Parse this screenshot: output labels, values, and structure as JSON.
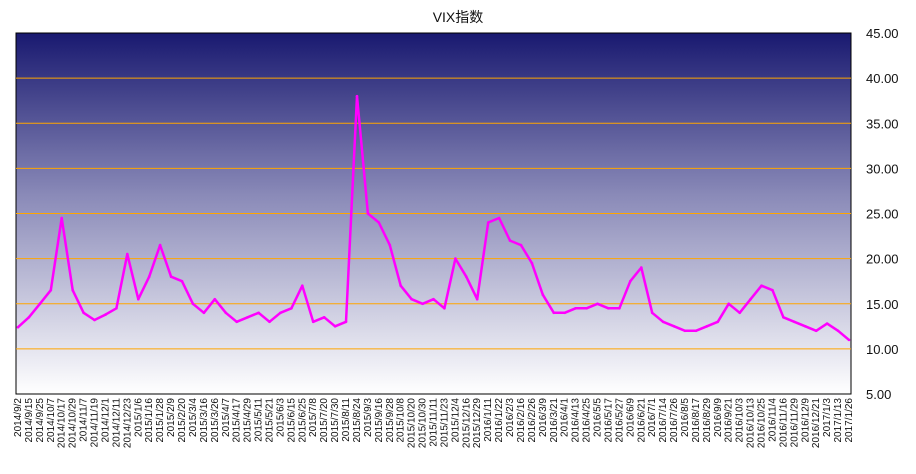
{
  "chart_data": {
    "type": "line",
    "title": "VIX指数",
    "xlabel": "",
    "ylabel": "",
    "ylim": [
      5,
      45
    ],
    "y_ticks": [
      "5.00",
      "10.00",
      "15.00",
      "20.00",
      "25.00",
      "30.00",
      "35.00",
      "40.00",
      "45.00"
    ],
    "y_axis_position": "right",
    "grid": true,
    "legend": "none",
    "colors": {
      "line": "#ff00ff",
      "grid": "#ffa500",
      "background_top": "#191970",
      "background_bottom": "#ffffff"
    },
    "x": [
      "2014/9/2",
      "2014/9/15",
      "2014/9/25",
      "2014/10/7",
      "2014/10/17",
      "2014/10/29",
      "2014/11/7",
      "2014/11/19",
      "2014/12/1",
      "2014/12/11",
      "2014/12/23",
      "2015/1/6",
      "2015/1/16",
      "2015/1/28",
      "2015/2/9",
      "2015/2/20",
      "2015/3/4",
      "2015/3/16",
      "2015/3/26",
      "2015/4/7",
      "2015/4/17",
      "2015/4/29",
      "2015/5/11",
      "2015/5/21",
      "2015/6/3",
      "2015/6/15",
      "2015/6/25",
      "2015/7/8",
      "2015/7/20",
      "2015/7/30",
      "2015/8/11",
      "2015/8/24",
      "2015/9/3",
      "2015/9/16",
      "2015/9/28",
      "2015/10/8",
      "2015/10/20",
      "2015/10/30",
      "2015/11/11",
      "2015/11/23",
      "2015/12/4",
      "2015/12/16",
      "2015/12/29",
      "2016/1/11",
      "2016/1/22",
      "2016/2/3",
      "2016/2/16",
      "2016/2/26",
      "2016/3/9",
      "2016/3/21",
      "2016/4/1",
      "2016/4/13",
      "2016/4/25",
      "2016/5/5",
      "2016/5/17",
      "2016/5/27",
      "2016/6/9",
      "2016/6/21",
      "2016/7/1",
      "2016/7/14",
      "2016/7/26",
      "2016/8/5",
      "2016/8/17",
      "2016/8/29",
      "2016/9/9",
      "2016/9/21",
      "2016/10/3",
      "2016/10/13",
      "2016/10/25",
      "2016/11/4",
      "2016/11/16",
      "2016/11/29",
      "2016/12/9",
      "2016/12/21",
      "2017/1/3",
      "2017/1/13",
      "2017/1/26"
    ],
    "series": [
      {
        "values": [
          12.4,
          13.5,
          15.0,
          16.5,
          24.5,
          16.5,
          14.0,
          13.2,
          13.8,
          14.5,
          20.5,
          15.5,
          18.0,
          21.5,
          18.0,
          17.5,
          15.0,
          14.0,
          15.5,
          14.0,
          13.0,
          13.5,
          14.0,
          13.0,
          14.0,
          14.5,
          17.0,
          13.0,
          13.5,
          12.5,
          13.0,
          38.0,
          25.0,
          24.0,
          21.5,
          17.0,
          15.5,
          15.0,
          15.5,
          14.5,
          20.0,
          18.0,
          15.5,
          24.0,
          24.5,
          22.0,
          21.5,
          19.5,
          16.0,
          14.0,
          14.0,
          14.5,
          14.5,
          15.0,
          14.5,
          14.5,
          17.5,
          19.0,
          14.0,
          13.0,
          12.5,
          12.0,
          12.0,
          12.5,
          13.0,
          15.0,
          14.0,
          15.5,
          17.0,
          16.5,
          13.5,
          13.0,
          12.5,
          12.0,
          12.8,
          12.0,
          11.0
        ]
      }
    ]
  }
}
